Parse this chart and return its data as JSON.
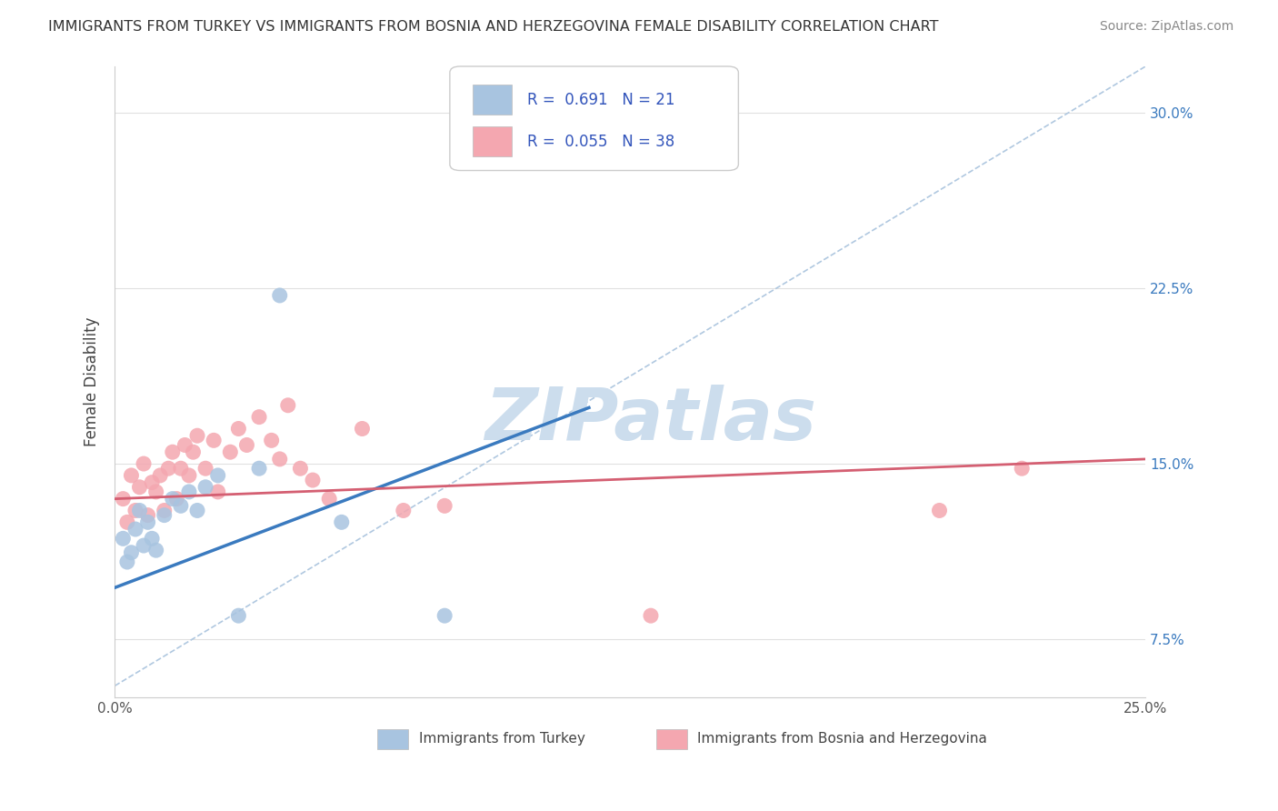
{
  "title": "IMMIGRANTS FROM TURKEY VS IMMIGRANTS FROM BOSNIA AND HERZEGOVINA FEMALE DISABILITY CORRELATION CHART",
  "source": "Source: ZipAtlas.com",
  "ylabel": "Female Disability",
  "xlim": [
    0.0,
    0.25
  ],
  "ylim": [
    0.05,
    0.32
  ],
  "y_ticks": [
    0.075,
    0.15,
    0.225,
    0.3
  ],
  "y_tick_labels": [
    "7.5%",
    "15.0%",
    "22.5%",
    "30.0%"
  ],
  "legend_label_blue": "Immigrants from Turkey",
  "legend_label_pink": "Immigrants from Bosnia and Herzegovina",
  "legend_r_blue": "0.691",
  "legend_n_blue": "21",
  "legend_r_pink": "0.055",
  "legend_n_pink": "38",
  "blue_color": "#a8c4e0",
  "pink_color": "#f4a7b0",
  "blue_line_color": "#3a7abf",
  "pink_line_color": "#d45f72",
  "legend_text_color": "#3355bb",
  "watermark": "ZIPatlas",
  "watermark_color": "#ccdded",
  "blue_scatter_x": [
    0.002,
    0.003,
    0.004,
    0.005,
    0.006,
    0.007,
    0.008,
    0.009,
    0.01,
    0.012,
    0.014,
    0.016,
    0.018,
    0.02,
    0.022,
    0.025,
    0.03,
    0.035,
    0.04,
    0.055,
    0.08
  ],
  "blue_scatter_y": [
    0.118,
    0.108,
    0.112,
    0.122,
    0.13,
    0.115,
    0.125,
    0.118,
    0.113,
    0.128,
    0.135,
    0.132,
    0.138,
    0.13,
    0.14,
    0.145,
    0.085,
    0.148,
    0.222,
    0.125,
    0.085
  ],
  "pink_scatter_x": [
    0.002,
    0.003,
    0.004,
    0.005,
    0.006,
    0.007,
    0.008,
    0.009,
    0.01,
    0.011,
    0.012,
    0.013,
    0.014,
    0.015,
    0.016,
    0.017,
    0.018,
    0.019,
    0.02,
    0.022,
    0.024,
    0.025,
    0.028,
    0.03,
    0.032,
    0.035,
    0.038,
    0.04,
    0.042,
    0.045,
    0.048,
    0.052,
    0.06,
    0.07,
    0.08,
    0.13,
    0.2,
    0.22
  ],
  "pink_scatter_y": [
    0.135,
    0.125,
    0.145,
    0.13,
    0.14,
    0.15,
    0.128,
    0.142,
    0.138,
    0.145,
    0.13,
    0.148,
    0.155,
    0.135,
    0.148,
    0.158,
    0.145,
    0.155,
    0.162,
    0.148,
    0.16,
    0.138,
    0.155,
    0.165,
    0.158,
    0.17,
    0.16,
    0.152,
    0.175,
    0.148,
    0.143,
    0.135,
    0.165,
    0.13,
    0.132,
    0.085,
    0.13,
    0.148
  ],
  "blue_line_x": [
    0.0,
    0.115
  ],
  "blue_line_y": [
    0.097,
    0.174
  ],
  "pink_line_x": [
    0.0,
    0.25
  ],
  "pink_line_y": [
    0.135,
    0.152
  ],
  "diag_line_x": [
    0.0,
    0.25
  ],
  "diag_line_y": [
    0.055,
    0.32
  ],
  "grid_color": "#e0e0e0",
  "bg_color": "#ffffff"
}
